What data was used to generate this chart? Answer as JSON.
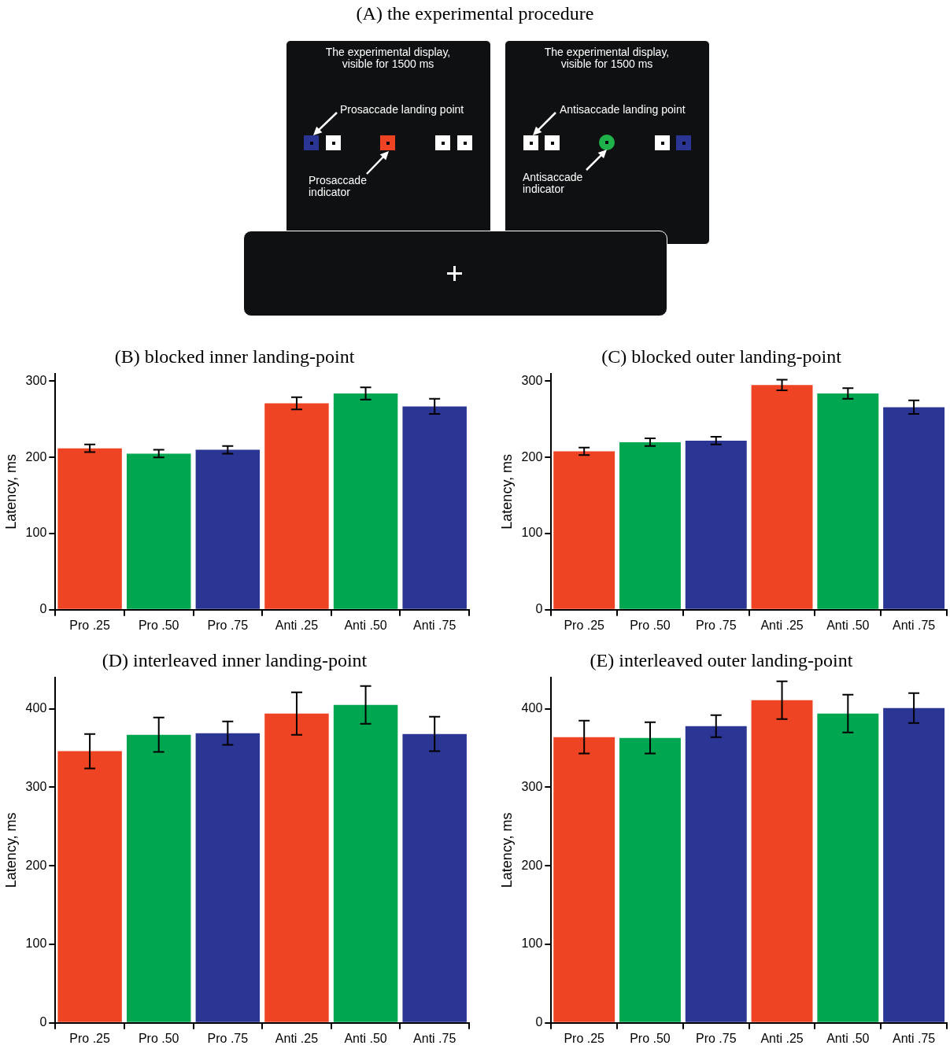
{
  "chart_data": [
    {
      "type": "other",
      "title": "(A) the experimental procedure",
      "annotations": [
        "The experimental display,\nvisible for 1500 ms",
        "Prosaccade landing point",
        "Prosaccade\nindicator",
        "The experimental display,\nvisible for 1500 ms",
        "Antisaccade landing point",
        "Antisaccade\nindicator"
      ]
    },
    {
      "type": "bar",
      "title": "(B) blocked inner landing-point",
      "ylabel": "Latency, ms",
      "categories": [
        "Pro .25",
        "Pro .50",
        "Pro .75",
        "Anti .25",
        "Anti .50",
        "Anti .75"
      ],
      "values": [
        212,
        205,
        210,
        271,
        284,
        267
      ],
      "errors": [
        5,
        5,
        5,
        8,
        8,
        10
      ],
      "colors": [
        "#ee4423",
        "#00a650",
        "#2b3593",
        "#ee4423",
        "#00a650",
        "#2b3593"
      ],
      "ylim": [
        0,
        310
      ],
      "yticks": [
        0,
        100,
        200,
        300
      ]
    },
    {
      "type": "bar",
      "title": "(C) blocked outer landing-point",
      "ylabel": "Latency, ms",
      "categories": [
        "Pro .25",
        "Pro .50",
        "Pro .75",
        "Anti .25",
        "Anti .50",
        "Anti .75"
      ],
      "values": [
        208,
        220,
        222,
        295,
        284,
        266
      ],
      "errors": [
        5,
        5,
        5,
        7,
        7,
        9
      ],
      "colors": [
        "#ee4423",
        "#00a650",
        "#2b3593",
        "#ee4423",
        "#00a650",
        "#2b3593"
      ],
      "ylim": [
        0,
        310
      ],
      "yticks": [
        0,
        100,
        200,
        300
      ]
    },
    {
      "type": "bar",
      "title": "(D) interleaved inner landing-point",
      "ylabel": "Latency, ms",
      "categories": [
        "Pro .25",
        "Pro .50",
        "Pro .75",
        "Anti .25",
        "Anti .50",
        "Anti .75"
      ],
      "values": [
        346,
        367,
        369,
        394,
        405,
        368
      ],
      "errors": [
        22,
        22,
        15,
        27,
        24,
        22
      ],
      "colors": [
        "#ee4423",
        "#00a650",
        "#2b3593",
        "#ee4423",
        "#00a650",
        "#2b3593"
      ],
      "ylim": [
        0,
        440
      ],
      "yticks": [
        0,
        100,
        200,
        300,
        400
      ]
    },
    {
      "type": "bar",
      "title": "(E) interleaved outer landing-point",
      "ylabel": "Latency, ms",
      "categories": [
        "Pro .25",
        "Pro .50",
        "Pro .75",
        "Anti .25",
        "Anti .50",
        "Anti .75"
      ],
      "values": [
        364,
        363,
        378,
        411,
        394,
        401
      ],
      "errors": [
        21,
        20,
        14,
        24,
        24,
        19
      ],
      "colors": [
        "#ee4423",
        "#00a650",
        "#2b3593",
        "#ee4423",
        "#00a650",
        "#2b3593"
      ],
      "ylim": [
        0,
        440
      ],
      "yticks": [
        0,
        100,
        200,
        300,
        400
      ]
    }
  ]
}
